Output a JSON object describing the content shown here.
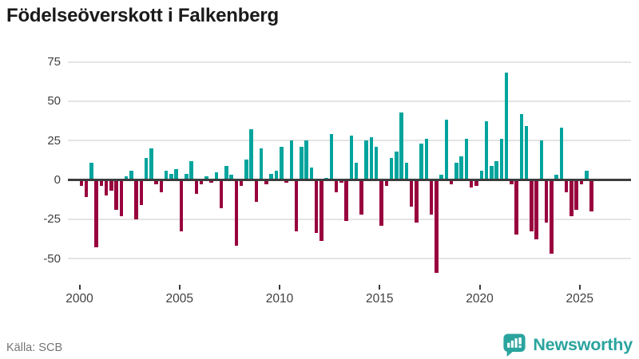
{
  "header": {
    "title": "Födelseöverskott i Falkenberg"
  },
  "footer": {
    "source": "Källa: SCB",
    "brand": "Newsworthy"
  },
  "colors": {
    "positive": "#00a49d",
    "negative": "#98013e",
    "grid": "#e4e4e4",
    "zero_line": "#3d3d3d",
    "axis_text": "#3f3f3f",
    "source_text": "#757575",
    "brand": "#2aa49e",
    "title": "#1a1a1a"
  },
  "chart_data": {
    "type": "bar",
    "title": "Födelseöverskott i Falkenberg",
    "xlabel": "",
    "ylabel": "",
    "x_unit": "quarter",
    "start_year": 2000,
    "x_tick_labels": [
      "2000",
      "2005",
      "2010",
      "2015",
      "2020",
      "2025"
    ],
    "x_tick_years": [
      2000,
      2005,
      2010,
      2015,
      2020,
      2025
    ],
    "y_ticks": [
      75,
      50,
      25,
      0,
      -25,
      -50
    ],
    "y_tick_labels": [
      "75",
      "50",
      "25",
      "0",
      "-25",
      "-50"
    ],
    "ylim": [
      -62,
      80
    ],
    "grid": true,
    "legend": false,
    "series_quarterly": [
      {
        "year": 2000,
        "values": [
          -4,
          -11,
          11,
          -43
        ]
      },
      {
        "year": 2001,
        "values": [
          -4,
          -10,
          -7,
          -19
        ]
      },
      {
        "year": 2002,
        "values": [
          -23,
          2,
          6,
          -25
        ]
      },
      {
        "year": 2003,
        "values": [
          -16,
          14,
          20,
          -3
        ]
      },
      {
        "year": 2004,
        "values": [
          -8,
          6,
          4,
          7
        ]
      },
      {
        "year": 2005,
        "values": [
          -33,
          4,
          12,
          -9
        ]
      },
      {
        "year": 2006,
        "values": [
          -3,
          2,
          -2,
          5
        ]
      },
      {
        "year": 2007,
        "values": [
          -18,
          9,
          3,
          -42
        ]
      },
      {
        "year": 2008,
        "values": [
          -4,
          13,
          32,
          -14
        ]
      },
      {
        "year": 2009,
        "values": [
          20,
          -3,
          4,
          6
        ]
      },
      {
        "year": 2010,
        "values": [
          21,
          -2,
          25,
          -33
        ]
      },
      {
        "year": 2011,
        "values": [
          21,
          25,
          8,
          -34
        ]
      },
      {
        "year": 2012,
        "values": [
          -39,
          1,
          29,
          -8
        ]
      },
      {
        "year": 2013,
        "values": [
          -2,
          -26,
          28,
          11
        ]
      },
      {
        "year": 2014,
        "values": [
          -22,
          25,
          27,
          21
        ]
      },
      {
        "year": 2015,
        "values": [
          -29,
          -4,
          14,
          18
        ]
      },
      {
        "year": 2016,
        "values": [
          43,
          11,
          -17,
          -27
        ]
      },
      {
        "year": 2017,
        "values": [
          23,
          26,
          -22,
          -59
        ]
      },
      {
        "year": 2018,
        "values": [
          3,
          38,
          -3,
          11
        ]
      },
      {
        "year": 2019,
        "values": [
          15,
          26,
          -5,
          -4
        ]
      },
      {
        "year": 2020,
        "values": [
          6,
          37,
          9,
          12
        ]
      },
      {
        "year": 2021,
        "values": [
          26,
          68,
          -3,
          -35
        ]
      },
      {
        "year": 2022,
        "values": [
          42,
          34,
          -33,
          -38
        ]
      },
      {
        "year": 2023,
        "values": [
          25,
          -27,
          -47,
          3
        ]
      },
      {
        "year": 2024,
        "values": [
          33,
          -8,
          -23,
          -19
        ]
      },
      {
        "year": 2025,
        "values": [
          -3,
          6,
          -20
        ]
      }
    ]
  }
}
